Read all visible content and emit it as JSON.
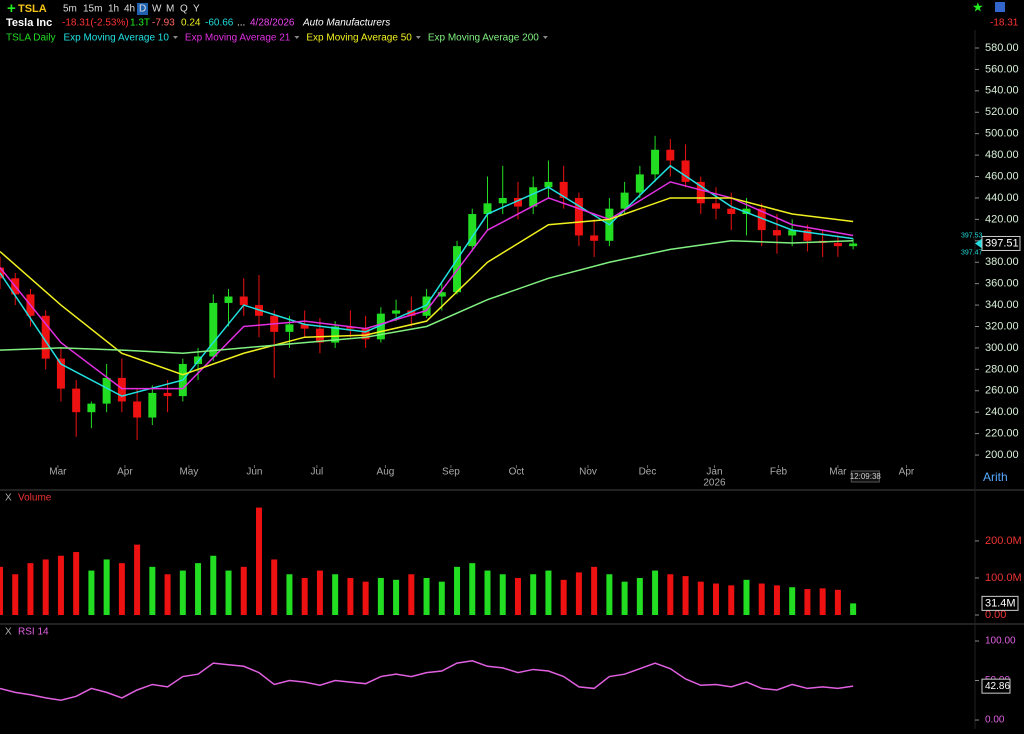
{
  "header": {
    "symbol": "TSLA",
    "timeframes": [
      "5m",
      "15m",
      "1h",
      "4h",
      "D",
      "W",
      "M",
      "Q",
      "Y"
    ],
    "name": "Tesla Inc",
    "change": "-18.31(-2.53%)",
    "market_cap": "1.3T",
    "stats": [
      "-7.93",
      "0.24",
      "-60.66",
      "..."
    ],
    "date": "4/28/2026",
    "industry": "Auto Manufacturers",
    "right_change": "-18.31"
  },
  "chart_data": [
    {
      "type": "candlestick",
      "name": "TSLA Daily",
      "up_color": "#22dd22",
      "down_color": "#ee1111",
      "x": [
        0,
        1,
        2,
        3,
        4,
        5,
        6,
        7,
        8,
        9,
        10,
        11,
        12,
        13,
        14,
        15,
        16,
        17,
        18,
        19,
        20,
        21,
        22,
        23,
        24,
        25,
        26,
        27,
        28,
        29,
        30,
        31,
        32,
        33,
        34,
        35,
        36,
        37,
        38,
        39,
        40,
        41,
        42,
        43,
        44,
        45,
        46,
        47,
        48,
        49,
        50,
        51,
        52,
        53,
        54,
        55,
        56
      ],
      "open": [
        375,
        365,
        350,
        330,
        290,
        262,
        240,
        248,
        272,
        250,
        235,
        258,
        255,
        285,
        292,
        342,
        348,
        340,
        330,
        315,
        322,
        318,
        305,
        320,
        318,
        308,
        332,
        335,
        330,
        348,
        352,
        395,
        425,
        435,
        440,
        432,
        450,
        455,
        440,
        405,
        400,
        430,
        445,
        462,
        485,
        475,
        455,
        435,
        430,
        425,
        430,
        410,
        405,
        410,
        400,
        398,
        395
      ],
      "high": [
        385,
        370,
        355,
        335,
        300,
        270,
        250,
        285,
        290,
        262,
        265,
        270,
        290,
        300,
        350,
        355,
        365,
        368,
        335,
        330,
        335,
        328,
        325,
        335,
        330,
        338,
        345,
        348,
        355,
        360,
        400,
        430,
        460,
        470,
        455,
        460,
        475,
        470,
        445,
        420,
        440,
        455,
        470,
        498,
        495,
        490,
        460,
        450,
        445,
        440,
        435,
        425,
        420,
        415,
        410,
        405,
        402
      ],
      "low": [
        355,
        340,
        320,
        280,
        250,
        217,
        225,
        240,
        240,
        214,
        228,
        240,
        250,
        270,
        288,
        320,
        330,
        310,
        272,
        300,
        310,
        295,
        300,
        310,
        300,
        305,
        325,
        320,
        328,
        335,
        350,
        390,
        410,
        425,
        420,
        425,
        440,
        430,
        395,
        385,
        395,
        425,
        440,
        455,
        460,
        450,
        425,
        420,
        410,
        405,
        395,
        388,
        395,
        390,
        385,
        385,
        392
      ],
      "close": [
        365,
        350,
        330,
        290,
        262,
        240,
        248,
        272,
        250,
        235,
        258,
        255,
        285,
        292,
        342,
        348,
        340,
        330,
        315,
        322,
        318,
        305,
        320,
        318,
        308,
        332,
        335,
        330,
        348,
        352,
        395,
        425,
        435,
        440,
        432,
        450,
        455,
        440,
        405,
        400,
        430,
        445,
        462,
        485,
        475,
        455,
        435,
        430,
        425,
        430,
        410,
        405,
        410,
        400,
        398,
        395,
        397.51
      ],
      "series": [
        {
          "name": "Exp Moving Average 10",
          "color": "#22e0e0",
          "x": [
            0,
            4,
            8,
            12,
            16,
            20,
            24,
            28,
            32,
            36,
            40,
            44,
            48,
            52,
            56
          ],
          "values": [
            370,
            285,
            255,
            270,
            340,
            322,
            315,
            340,
            425,
            450,
            415,
            470,
            432,
            410,
            402
          ]
        },
        {
          "name": "Exp Moving Average 21",
          "color": "#e030e0",
          "x": [
            0,
            4,
            8,
            12,
            16,
            20,
            24,
            28,
            32,
            36,
            40,
            44,
            48,
            52,
            56
          ],
          "values": [
            375,
            305,
            262,
            262,
            320,
            325,
            318,
            335,
            410,
            440,
            420,
            455,
            440,
            415,
            405
          ]
        },
        {
          "name": "Exp Moving Average 50",
          "color": "#f0f020",
          "x": [
            0,
            4,
            8,
            12,
            16,
            20,
            24,
            28,
            32,
            36,
            40,
            44,
            48,
            52,
            56
          ],
          "values": [
            390,
            340,
            295,
            275,
            295,
            310,
            312,
            325,
            380,
            415,
            420,
            440,
            440,
            425,
            418
          ]
        },
        {
          "name": "Exp Moving Average 200",
          "color": "#80f080",
          "x": [
            0,
            4,
            8,
            12,
            16,
            20,
            24,
            28,
            32,
            36,
            40,
            44,
            48,
            52,
            56
          ],
          "values": [
            298,
            300,
            298,
            295,
            300,
            305,
            310,
            320,
            345,
            365,
            380,
            392,
            400,
            398,
            400
          ]
        }
      ],
      "xlim": [
        0,
        64
      ],
      "ylim": [
        190.7,
        596.8
      ],
      "xticks": [
        {
          "value": 3.8,
          "label": "Mar"
        },
        {
          "value": 8.2,
          "label": "Apr"
        },
        {
          "value": 12.4,
          "label": "May"
        },
        {
          "value": 16.7,
          "label": "Jun"
        },
        {
          "value": 20.8,
          "label": "Jul"
        },
        {
          "value": 25.3,
          "label": "Aug"
        },
        {
          "value": 29.6,
          "label": "Sep"
        },
        {
          "value": 33.9,
          "label": "Oct"
        },
        {
          "value": 38.6,
          "label": "Nov"
        },
        {
          "value": 42.5,
          "label": "Dec"
        },
        {
          "value": 46.9,
          "label": "Jan"
        },
        {
          "value": 51.1,
          "label": "Feb"
        },
        {
          "value": 55.0,
          "label": "Mar"
        },
        {
          "value": 59.5,
          "label": "Apr"
        }
      ],
      "yticks": [
        {
          "value": 200,
          "label": "200.00"
        },
        {
          "value": 220,
          "label": "220.00"
        },
        {
          "value": 240,
          "label": "240.00"
        },
        {
          "value": 260,
          "label": "260.00"
        },
        {
          "value": 280,
          "label": "280.00"
        },
        {
          "value": 300,
          "label": "300.00"
        },
        {
          "value": 320,
          "label": "320.00"
        },
        {
          "value": 340,
          "label": "340.00"
        },
        {
          "value": 360,
          "label": "360.00"
        },
        {
          "value": 380,
          "label": "380.00"
        },
        {
          "value": 400,
          "label": "400.00"
        },
        {
          "value": 420,
          "label": "420.00"
        },
        {
          "value": 440,
          "label": "440.00"
        },
        {
          "value": 460,
          "label": "460.00"
        },
        {
          "value": 480,
          "label": "480.00"
        },
        {
          "value": 500,
          "label": "500.00"
        },
        {
          "value": 520,
          "label": "520.00"
        },
        {
          "value": 540,
          "label": "540.00"
        },
        {
          "value": 560,
          "label": "560.00"
        },
        {
          "value": 580,
          "label": "580.00"
        }
      ],
      "year_label": {
        "x": 46.9,
        "text": "2026"
      },
      "time_label": {
        "x": 56.8,
        "text": "12:09:38"
      },
      "scale_label": "Arith",
      "last_price": {
        "value": 397.51,
        "label": "397.51"
      },
      "bid": {
        "value": 397.53,
        "label": "397.53"
      },
      "ask": {
        "value": 397.47,
        "label": "397.47"
      }
    },
    {
      "type": "bar",
      "title": "Volume",
      "close_label": "X",
      "values": [
        130000000,
        110000000,
        140000000,
        150000000,
        160000000,
        170000000,
        120000000,
        150000000,
        140000000,
        190000000,
        130000000,
        110000000,
        120000000,
        140000000,
        160000000,
        120000000,
        130000000,
        290000000,
        150000000,
        110000000,
        100000000,
        120000000,
        110000000,
        100000000,
        90000000,
        100000000,
        95000000,
        110000000,
        100000000,
        90000000,
        130000000,
        140000000,
        120000000,
        110000000,
        100000000,
        110000000,
        120000000,
        95000000,
        115000000,
        130000000,
        110000000,
        90000000,
        100000000,
        120000000,
        110000000,
        105000000,
        90000000,
        85000000,
        80000000,
        95000000,
        85000000,
        80000000,
        75000000,
        70000000,
        72000000,
        68000000,
        31400000
      ],
      "value_labels": [
        null,
        null,
        null,
        null,
        null,
        null,
        null,
        null,
        null,
        null,
        null,
        null,
        null,
        null,
        null,
        null,
        null,
        null,
        null,
        null,
        null,
        null,
        null,
        null,
        null,
        null,
        null,
        null,
        null,
        null,
        null,
        null,
        null,
        null,
        null,
        null,
        null,
        null,
        null,
        null,
        null,
        null,
        null,
        null,
        null,
        null,
        null,
        null,
        null,
        null,
        null,
        null,
        null,
        null,
        null,
        null,
        "31.4M"
      ],
      "ylim": [
        0,
        324000000
      ],
      "yticks": [
        {
          "value": 0,
          "label": "0.00"
        },
        {
          "value": 100000000,
          "label": "100.0M"
        },
        {
          "value": 200000000,
          "label": "200.0M"
        }
      ]
    },
    {
      "type": "line",
      "title": "RSI 14",
      "close_label": "X",
      "color": "#e060e0",
      "values": [
        40,
        35,
        32,
        28,
        25,
        30,
        40,
        35,
        28,
        38,
        45,
        42,
        55,
        58,
        72,
        70,
        68,
        60,
        45,
        50,
        48,
        44,
        50,
        48,
        46,
        55,
        58,
        55,
        60,
        62,
        72,
        75,
        68,
        66,
        60,
        64,
        62,
        55,
        42,
        40,
        55,
        58,
        65,
        72,
        65,
        52,
        44,
        45,
        42,
        48,
        40,
        38,
        45,
        40,
        42,
        40,
        42.86
      ],
      "value_labels": [
        null,
        null,
        null,
        null,
        null,
        null,
        null,
        null,
        null,
        null,
        null,
        null,
        null,
        null,
        null,
        null,
        null,
        null,
        null,
        null,
        null,
        null,
        null,
        null,
        null,
        null,
        null,
        null,
        null,
        null,
        null,
        null,
        null,
        null,
        null,
        null,
        null,
        null,
        null,
        null,
        null,
        null,
        null,
        null,
        null,
        null,
        null,
        null,
        null,
        null,
        null,
        null,
        null,
        null,
        null,
        null,
        "42.86"
      ],
      "ylim": [
        -6.3,
        111.4
      ],
      "yticks": [
        {
          "value": 0,
          "label": "0.00"
        },
        {
          "value": 50,
          "label": "50.00"
        },
        {
          "value": 100,
          "label": "100.00"
        }
      ]
    }
  ]
}
